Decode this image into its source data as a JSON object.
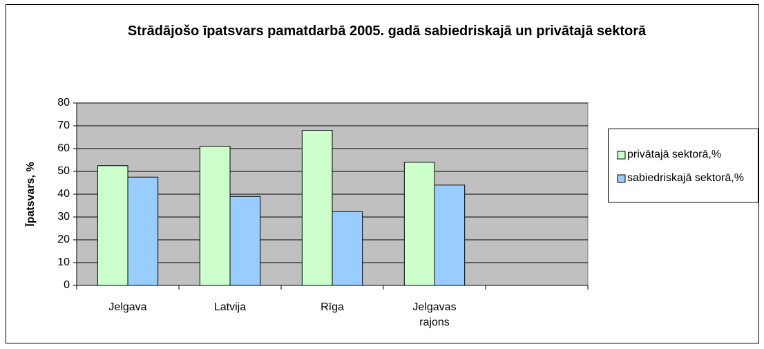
{
  "chart_data": {
    "type": "bar",
    "title": "Strādājošo īpatsvars pamatdarbā 2005. gadā sabiedriskajā un privātajā sektorā",
    "y_label": "Īpatsvars, %",
    "categories": [
      "Jelgava",
      "Latvija",
      "Rīga",
      "Jelgavas rajons",
      null
    ],
    "series": [
      {
        "name": "privātajā sektorā,%",
        "color": "#ccffcc",
        "values": [
          52.5,
          61,
          68,
          54,
          null
        ]
      },
      {
        "name": "sabiedriskajā sektorā,%",
        "color": "#99ccff",
        "values": [
          47.5,
          39,
          32.3,
          44,
          null
        ]
      }
    ],
    "ylim": [
      0,
      80
    ],
    "yticks": [
      0,
      10,
      20,
      30,
      40,
      50,
      60,
      70,
      80
    ],
    "grid": true,
    "legend": "right",
    "plot_background": "#c0c0c0"
  }
}
